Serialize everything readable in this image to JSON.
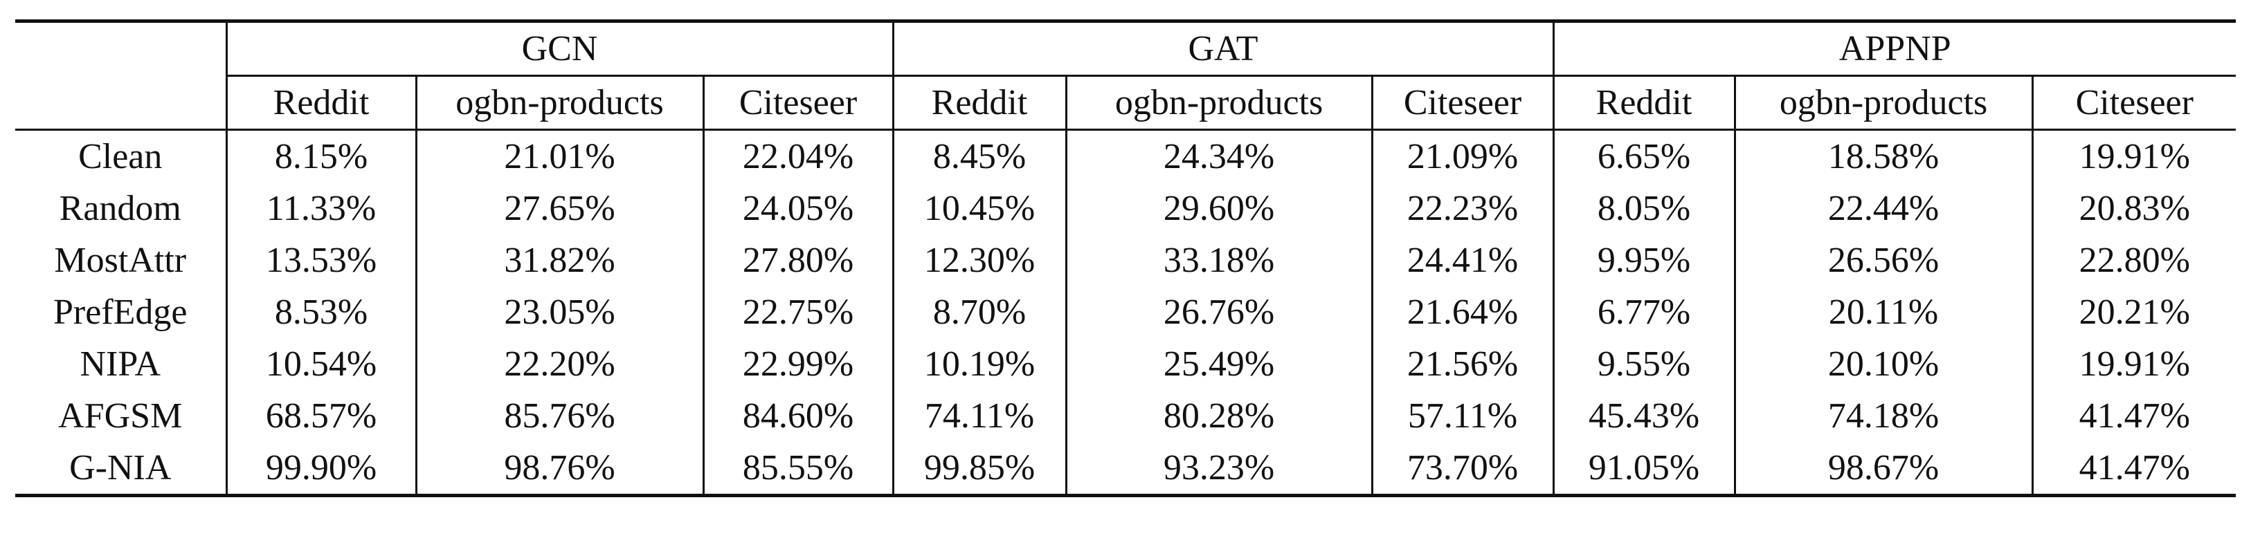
{
  "models": [
    "GCN",
    "GAT",
    "APPNP"
  ],
  "datasets": [
    "Reddit",
    "ogbn-products",
    "Citeseer"
  ],
  "rows": [
    {
      "method": "Clean",
      "values": [
        "8.15%",
        "21.01%",
        "22.04%",
        "8.45%",
        "24.34%",
        "21.09%",
        "6.65%",
        "18.58%",
        "19.91%"
      ],
      "bold": [
        false,
        false,
        false,
        false,
        false,
        false,
        false,
        false,
        false
      ]
    },
    {
      "method": "Random",
      "values": [
        "11.33%",
        "27.65%",
        "24.05%",
        "10.45%",
        "29.60%",
        "22.23%",
        "8.05%",
        "22.44%",
        "20.83%"
      ],
      "bold": [
        false,
        false,
        false,
        false,
        false,
        false,
        false,
        false,
        false
      ]
    },
    {
      "method": "MostAttr",
      "values": [
        "13.53%",
        "31.82%",
        "27.80%",
        "12.30%",
        "33.18%",
        "24.41%",
        "9.95%",
        "26.56%",
        "22.80%"
      ],
      "bold": [
        false,
        false,
        false,
        false,
        false,
        false,
        false,
        false,
        false
      ]
    },
    {
      "method": "PrefEdge",
      "values": [
        "8.53%",
        "23.05%",
        "22.75%",
        "8.70%",
        "26.76%",
        "21.64%",
        "6.77%",
        "20.11%",
        "20.21%"
      ],
      "bold": [
        false,
        false,
        false,
        false,
        false,
        false,
        false,
        false,
        false
      ]
    },
    {
      "method": "NIPA",
      "values": [
        "10.54%",
        "22.20%",
        "22.99%",
        "10.19%",
        "25.49%",
        "21.56%",
        "9.55%",
        "20.10%",
        "19.91%"
      ],
      "bold": [
        false,
        false,
        false,
        false,
        false,
        false,
        false,
        false,
        false
      ]
    },
    {
      "method": "AFGSM",
      "values": [
        "68.57%",
        "85.76%",
        "84.60%",
        "74.11%",
        "80.28%",
        "57.11%",
        "45.43%",
        "74.18%",
        "41.47%"
      ],
      "bold": [
        false,
        false,
        false,
        false,
        false,
        false,
        false,
        false,
        true
      ]
    },
    {
      "method": "G-NIA",
      "values": [
        "99.90%",
        "98.76%",
        "85.55%",
        "99.85%",
        "93.23%",
        "73.70%",
        "91.05%",
        "98.67%",
        "41.47%"
      ],
      "bold": [
        true,
        true,
        true,
        true,
        true,
        true,
        true,
        true,
        true
      ]
    }
  ]
}
